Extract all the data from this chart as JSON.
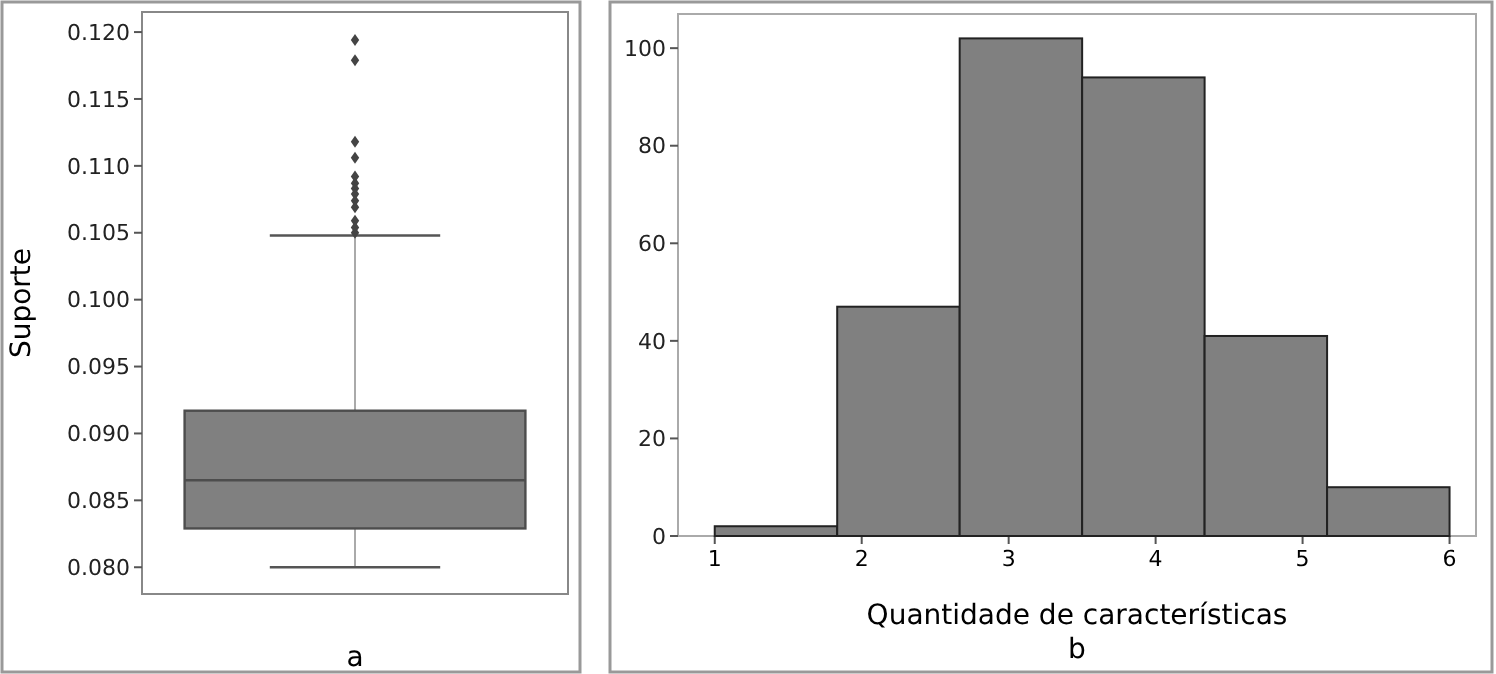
{
  "chart_data": [
    {
      "type": "box",
      "ylabel": "Suporte",
      "xlabel": "a",
      "categories": [
        null
      ],
      "color": "#808080",
      "boxes": [
        {
          "low": 0.08,
          "q1": 0.0829,
          "median": 0.0865,
          "q3": 0.0917,
          "high": 0.1048,
          "outliers": [
            0.1194,
            0.1179,
            0.1118,
            0.1106,
            0.1092,
            0.1087,
            0.1083,
            0.1079,
            0.1074,
            0.1069,
            0.1059,
            0.1054,
            0.105
          ]
        }
      ],
      "ylim": [
        0.078,
        0.1215
      ],
      "yticks": [
        {
          "value": 0.08,
          "label": "0.080"
        },
        {
          "value": 0.085,
          "label": "0.085"
        },
        {
          "value": 0.09,
          "label": "0.090"
        },
        {
          "value": 0.095,
          "label": "0.095"
        },
        {
          "value": 0.1,
          "label": "0.100"
        },
        {
          "value": 0.105,
          "label": "0.105"
        },
        {
          "value": 0.11,
          "label": "0.110"
        },
        {
          "value": 0.115,
          "label": "0.115"
        },
        {
          "value": 0.12,
          "label": "0.120"
        }
      ],
      "grid": false,
      "marker": "diamond"
    },
    {
      "type": "histogram",
      "xlabel": "Quantidade de características",
      "annotations": [
        "b"
      ],
      "color": "#808080",
      "bins": [
        1,
        1.8333,
        2.6667,
        3.5,
        4.3333,
        5.1667,
        6
      ],
      "values": [
        2,
        47,
        102,
        94,
        41,
        10
      ],
      "xlim": [
        0.75,
        6.18
      ],
      "xticks": [
        1,
        2,
        3,
        4,
        5,
        6
      ],
      "ylim": [
        0,
        107
      ],
      "yticks": [
        0,
        20,
        40,
        60,
        80,
        100
      ],
      "grid": false
    }
  ]
}
